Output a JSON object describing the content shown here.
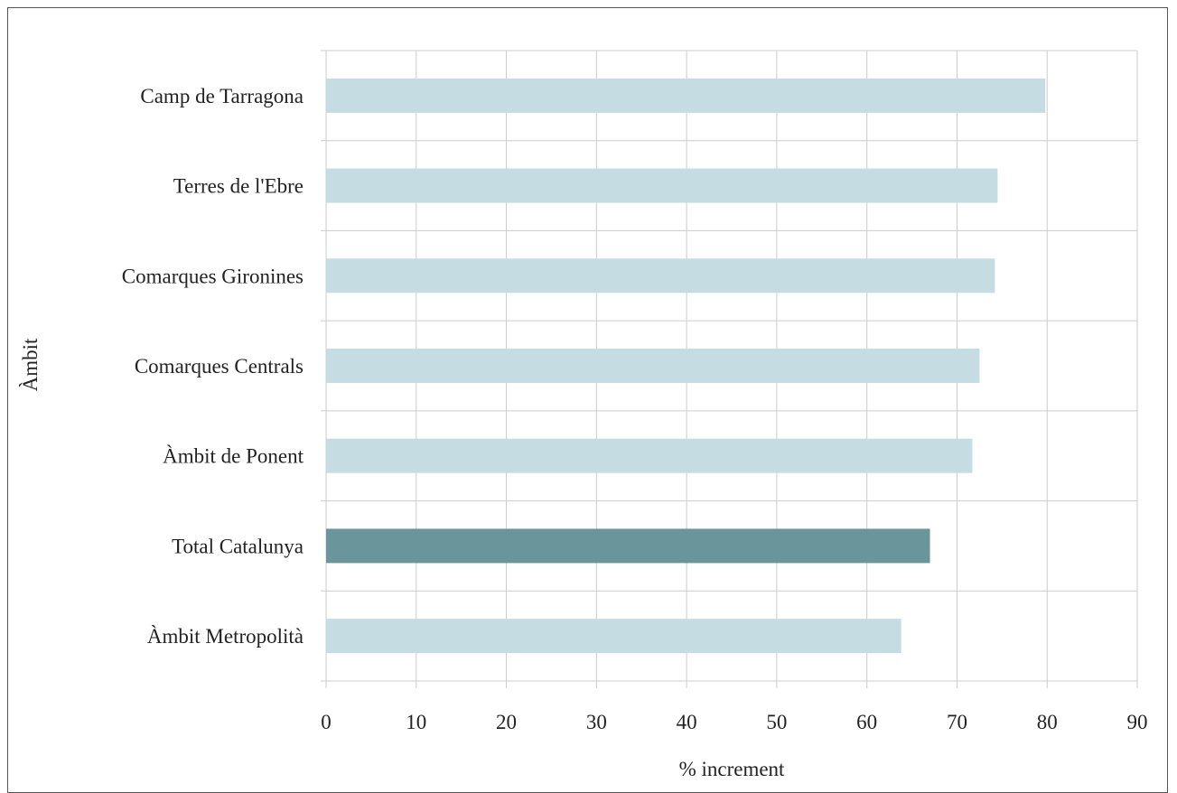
{
  "chart_data": {
    "type": "bar",
    "orientation": "horizontal",
    "categories": [
      "Camp de Tarragona",
      "Terres de l'Ebre",
      "Comarques Gironines",
      "Comarques Centrals",
      "Àmbit de Ponent",
      "Total Catalunya",
      "Àmbit Metropolità"
    ],
    "values": [
      79.8,
      74.5,
      74.2,
      72.5,
      71.7,
      67.0,
      63.8
    ],
    "highlight_category": "Total Catalunya",
    "xlabel": "% increment",
    "ylabel": "Àmbit",
    "xlim": [
      0,
      90
    ],
    "xticks": [
      "0",
      "10",
      "20",
      "30",
      "40",
      "50",
      "60",
      "70",
      "80",
      "90"
    ],
    "grid": true,
    "colors": {
      "bar": "#c5dce3",
      "highlight": "#6a959b",
      "grid": "#cccccc"
    }
  }
}
